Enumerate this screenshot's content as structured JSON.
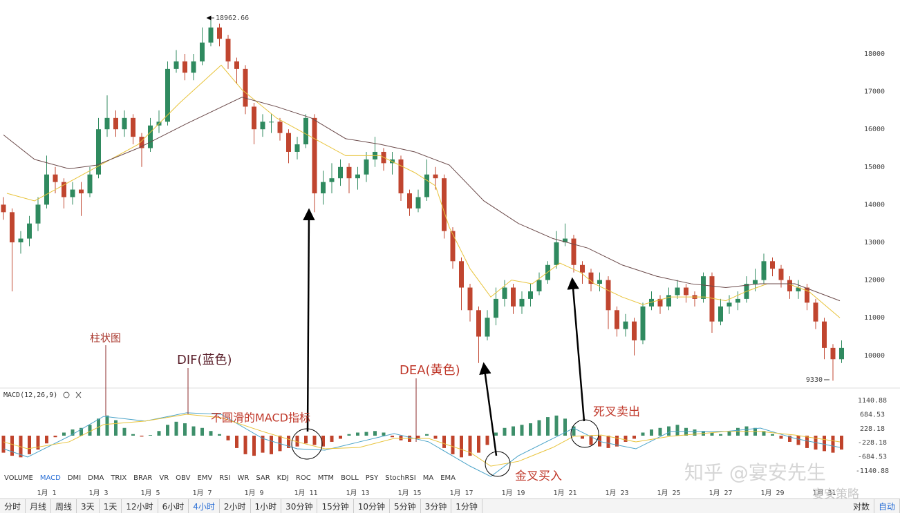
{
  "chart_data": [
    {
      "type": "candlestick",
      "categories": [
        null,
        null,
        null,
        null,
        null,
        "1月 1",
        null,
        null,
        null,
        null,
        null,
        "1月 3",
        null,
        null,
        null,
        null,
        null,
        "1月 5",
        null,
        null,
        null,
        null,
        null,
        "1月 7",
        null,
        null,
        null,
        null,
        null,
        "1月 9",
        null,
        null,
        null,
        null,
        null,
        "1月 11",
        null,
        null,
        null,
        null,
        null,
        "1月 13",
        null,
        null,
        null,
        null,
        null,
        "1月 15",
        null,
        null,
        null,
        null,
        null,
        "1月 17",
        null,
        null,
        null,
        null,
        null,
        "1月 19",
        null,
        null,
        null,
        null,
        null,
        "1月 21",
        null,
        null,
        null,
        null,
        null,
        "1月 23",
        null,
        null,
        null,
        null,
        null,
        "1月 25",
        null,
        null,
        null,
        null,
        null,
        "1月 27",
        null,
        null,
        null,
        null,
        null,
        "1月 29",
        null,
        null,
        null,
        null,
        null,
        "1月 31",
        null,
        null
      ],
      "open": [
        14000,
        13800,
        13000,
        13100,
        13500,
        14000,
        14800,
        14600,
        14200,
        14400,
        14300,
        14800,
        16000,
        16300,
        16000,
        16300,
        15800,
        15500,
        16100,
        16200,
        17600,
        17800,
        17500,
        17800,
        18300,
        18700,
        18400,
        17800,
        17600,
        16600,
        16000,
        16200,
        16200,
        15900,
        15400,
        15600,
        16300,
        14300,
        14600,
        14700,
        15000,
        14700,
        14800,
        15200,
        15400,
        15100,
        15200,
        14300,
        13900,
        14200,
        14800,
        14700,
        13300,
        12500,
        11800,
        11200,
        10500,
        11000,
        11500,
        11800,
        11300,
        11500,
        11700,
        12000,
        12400,
        13000,
        13100,
        12400,
        12200,
        11900,
        12000,
        11200,
        10700,
        10900,
        10400,
        11300,
        11500,
        11300,
        11600,
        11800,
        11600,
        11500,
        12100,
        10900,
        11300,
        11400,
        11500,
        11900,
        12000,
        12500,
        12300,
        12000,
        11700,
        11800,
        11400,
        10900,
        10200,
        9900
      ],
      "high": [
        14200,
        13900,
        13300,
        13700,
        14200,
        15300,
        15000,
        14700,
        14600,
        14600,
        15000,
        16300,
        16900,
        16500,
        16500,
        16400,
        15900,
        16300,
        16500,
        17800,
        18100,
        18000,
        18000,
        18700,
        18962,
        18800,
        18500,
        17900,
        17700,
        16700,
        16400,
        16400,
        16300,
        16000,
        15800,
        16400,
        16400,
        14900,
        15100,
        15200,
        15100,
        15000,
        15400,
        15800,
        15500,
        15400,
        15300,
        14400,
        14400,
        15200,
        15000,
        14800,
        13400,
        12600,
        11900,
        11300,
        11200,
        11800,
        12000,
        11900,
        11700,
        11900,
        12200,
        12500,
        13300,
        13500,
        13200,
        12500,
        12300,
        12200,
        12100,
        11300,
        11100,
        11000,
        11400,
        11700,
        11600,
        11800,
        12000,
        11900,
        11700,
        12200,
        12200,
        11500,
        11600,
        11700,
        12100,
        12300,
        12700,
        12600,
        12400,
        12100,
        12000,
        11900,
        11500,
        11000,
        10300,
        10400
      ],
      "low": [
        13600,
        11700,
        12700,
        12900,
        13300,
        13900,
        14300,
        13900,
        14000,
        13700,
        14200,
        14700,
        15800,
        15800,
        15800,
        15600,
        15000,
        15400,
        15900,
        16100,
        17500,
        17300,
        17300,
        17700,
        18200,
        18200,
        17600,
        17200,
        16400,
        15600,
        15800,
        15900,
        15700,
        15100,
        15200,
        15500,
        13800,
        14000,
        14300,
        14500,
        14300,
        14400,
        14600,
        15000,
        14900,
        14800,
        14100,
        13700,
        13800,
        14100,
        14400,
        13100,
        12300,
        11200,
        10900,
        9800,
        10400,
        10800,
        11300,
        11100,
        11100,
        11300,
        11600,
        11900,
        12300,
        12900,
        12200,
        11900,
        11700,
        11700,
        10700,
        10500,
        10500,
        10000,
        10300,
        11200,
        11100,
        11200,
        11500,
        11400,
        11300,
        11400,
        10600,
        10800,
        11100,
        11200,
        11400,
        11700,
        11900,
        12100,
        11800,
        11500,
        11500,
        11200,
        10700,
        9900,
        9330,
        9800
      ],
      "close": [
        13800,
        13000,
        13100,
        13500,
        14000,
        14800,
        14600,
        14200,
        14400,
        14300,
        14800,
        16000,
        16300,
        16000,
        16300,
        15800,
        15500,
        16100,
        16200,
        17600,
        17800,
        17500,
        17800,
        18300,
        18700,
        18400,
        17800,
        17600,
        16600,
        16000,
        16200,
        16200,
        15900,
        15400,
        15600,
        16300,
        14300,
        14600,
        14700,
        15000,
        14700,
        14800,
        15200,
        15400,
        15100,
        15200,
        14300,
        13900,
        14200,
        14800,
        14700,
        13300,
        12500,
        11800,
        11200,
        10500,
        11000,
        11500,
        11800,
        11300,
        11500,
        11700,
        12000,
        12400,
        13000,
        13100,
        12400,
        12200,
        11900,
        12000,
        11200,
        10700,
        10900,
        10400,
        11300,
        11500,
        11300,
        11600,
        11800,
        11600,
        11500,
        12100,
        10900,
        11300,
        11400,
        11500,
        11900,
        12000,
        12500,
        12300,
        12000,
        11700,
        11800,
        11400,
        10900,
        10200,
        9900,
        10200
      ],
      "up_color": "#2f8a5f",
      "down_color": "#c0452f",
      "ylim": [
        9172,
        19429
      ],
      "yticks": [
        10000,
        11000,
        12000,
        13000,
        14000,
        15000,
        16000,
        17000,
        18000
      ],
      "max_label": 18962.66,
      "min_label": 9330,
      "moving_averages": [
        {
          "color": "#e8c33a",
          "x": [
            0.4,
            3.6,
            10.8,
            15.6,
            20.4,
            25.2,
            27.6,
            31.6,
            35.6,
            39.6,
            43.6,
            47.6,
            50,
            51.6,
            54,
            56.4,
            58.8,
            61.2,
            64.4,
            66.8,
            68.4,
            71.6,
            74,
            77.2,
            81.2,
            83.6,
            86,
            88.4,
            90.8,
            93.2,
            96.8
          ],
          "values": [
            14300,
            14100,
            15000,
            15600,
            16700,
            17700,
            17050,
            16300,
            15800,
            15300,
            15300,
            14850,
            14500,
            13400,
            12300,
            11550,
            12000,
            11900,
            12450,
            12200,
            11900,
            11550,
            11350,
            11550,
            11550,
            11450,
            11700,
            11900,
            11900,
            11700,
            11000
          ]
        },
        {
          "color": "#6b4a4a",
          "x": [
            0,
            3.6,
            7.6,
            10.8,
            15.6,
            21.2,
            27.6,
            31.6,
            35.6,
            39.6,
            43.6,
            47.6,
            51.6,
            55.6,
            59.6,
            63.6,
            67.6,
            71.6,
            75.6,
            79.6,
            83.6,
            87.6,
            91.6,
            96.8
          ],
          "values": [
            15850,
            15200,
            14950,
            15050,
            15500,
            16150,
            16850,
            16600,
            16300,
            15750,
            15600,
            15400,
            15050,
            14100,
            13500,
            13100,
            12850,
            12400,
            12100,
            11900,
            11800,
            11900,
            11900,
            11450
          ]
        }
      ]
    },
    {
      "type": "macd",
      "title": "MACD(12,26,9)",
      "histogram": [
        -550,
        -650,
        -700,
        -600,
        -450,
        -250,
        -50,
        100,
        200,
        250,
        350,
        550,
        650,
        500,
        250,
        50,
        -30,
        20,
        150,
        350,
        450,
        400,
        300,
        250,
        150,
        50,
        -150,
        -400,
        -600,
        -650,
        -550,
        -600,
        -500,
        -400,
        -350,
        -250,
        -300,
        -350,
        -200,
        -100,
        50,
        100,
        120,
        150,
        100,
        -50,
        -150,
        -200,
        -100,
        50,
        -100,
        -400,
        -600,
        -700,
        -650,
        -550,
        -300,
        100,
        250,
        300,
        350,
        400,
        500,
        600,
        650,
        550,
        300,
        -100,
        -300,
        -350,
        -400,
        -350,
        -200,
        -100,
        100,
        200,
        250,
        300,
        350,
        250,
        200,
        150,
        100,
        50,
        150,
        250,
        300,
        250,
        150,
        50,
        -100,
        -200,
        -300,
        -400,
        -450,
        -500,
        -550,
        -450
      ],
      "pos_color": "#3d8f6a",
      "neg_color": "#c0432b",
      "dif": {
        "color": "#4aa3c8",
        "x": [
          0,
          2.8,
          7.6,
          11.6,
          16.4,
          21.2,
          25.2,
          30,
          34,
          37.2,
          41.2,
          45.2,
          49.2,
          54,
          56.4,
          59.6,
          63.6,
          66,
          69.2,
          73.2,
          77.2,
          83.6,
          87.6,
          91.6,
          96.8
        ],
        "values": [
          -425,
          -690,
          -20,
          625,
          470,
          740,
          690,
          -90,
          -425,
          -470,
          -200,
          65,
          -200,
          -985,
          -1320,
          -650,
          -90,
          245,
          -200,
          -425,
          135,
          135,
          245,
          -90,
          -380
        ]
      },
      "dea": {
        "color": "#e8c33a",
        "x": [
          0,
          2.8,
          7.6,
          11.6,
          16.4,
          21.2,
          25.2,
          30,
          34,
          37.2,
          41.2,
          45.2,
          49.2,
          54,
          56.4,
          59.6,
          63.6,
          66,
          69.2,
          73.2,
          77.2,
          83.6,
          87.6,
          91.6,
          96.8
        ],
        "values": [
          -200,
          -425,
          -200,
          360,
          470,
          690,
          580,
          135,
          -200,
          -425,
          -380,
          -90,
          -90,
          -540,
          -985,
          -830,
          -380,
          -20,
          20,
          -200,
          -20,
          135,
          135,
          20,
          -200
        ]
      },
      "ylim": [
        -1540,
        1450
      ],
      "yticks": [
        -1140.88,
        -684.53,
        -228.18,
        228.18,
        684.53,
        1140.88
      ]
    }
  ],
  "annotations": [
    "柱状图",
    "DIF(蓝色)",
    "DEA(黄色)",
    "不圆滑的MACD指标",
    "金叉买入",
    "死叉卖出"
  ],
  "watermark": "知乎 @宴安先生",
  "watermark_corner": "宴安策略",
  "indicator_tabs": [
    "VOLUME",
    "MACD",
    "DMI",
    "DMA",
    "TRIX",
    "BRAR",
    "VR",
    "OBV",
    "EMV",
    "RSI",
    "WR",
    "SAR",
    "KDJ",
    "ROC",
    "MTM",
    "BOLL",
    "PSY",
    "StochRSI",
    "MA",
    "EMA"
  ],
  "active_indicator": 1,
  "period_buttons": [
    "分时",
    "月线",
    "周线",
    "3天",
    "1天",
    "12小时",
    "6小时",
    "4小时",
    "2小时",
    "1小时",
    "30分钟",
    "15分钟",
    "10分钟",
    "5分钟",
    "3分钟",
    "1分钟"
  ],
  "active_period": 7,
  "right_buttons": [
    "对数",
    "自动"
  ],
  "active_right": 1
}
